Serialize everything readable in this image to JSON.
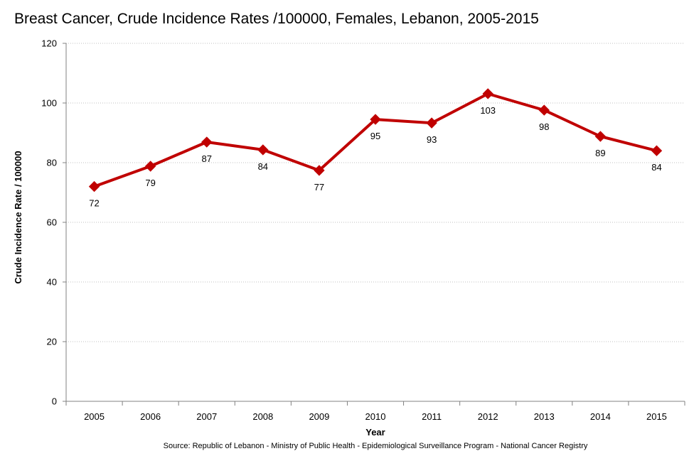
{
  "chart_data": {
    "type": "line",
    "title": "Breast Cancer, Crude Incidence Rates /100000,  Females, Lebanon, 2005-2015",
    "xlabel": "Year",
    "ylabel": "Crude Incidence Rate / 100000",
    "categories": [
      "2005",
      "2006",
      "2007",
      "2008",
      "2009",
      "2010",
      "2011",
      "2012",
      "2013",
      "2014",
      "2015"
    ],
    "series": [
      {
        "name": "Crude Incidence Rate",
        "values": [
          72,
          78.8,
          86.9,
          84.3,
          77.4,
          94.5,
          93.3,
          103.1,
          97.6,
          88.8,
          84.0
        ],
        "labels": [
          "72",
          "79",
          "87",
          "84",
          "77",
          "95",
          "93",
          "103",
          "98",
          "89",
          "84"
        ]
      }
    ],
    "ylim": [
      0,
      120
    ],
    "yticks": [
      0,
      20,
      40,
      60,
      80,
      100,
      120
    ],
    "grid": true,
    "legend": "none",
    "source": "Source:  Republic of Lebanon  - Ministry of Public Health - Epidemiological Surveillance Program - National Cancer Registry",
    "colors": {
      "line": "#C00000",
      "grid": "#BFBFBF",
      "axis": "#808080"
    }
  }
}
